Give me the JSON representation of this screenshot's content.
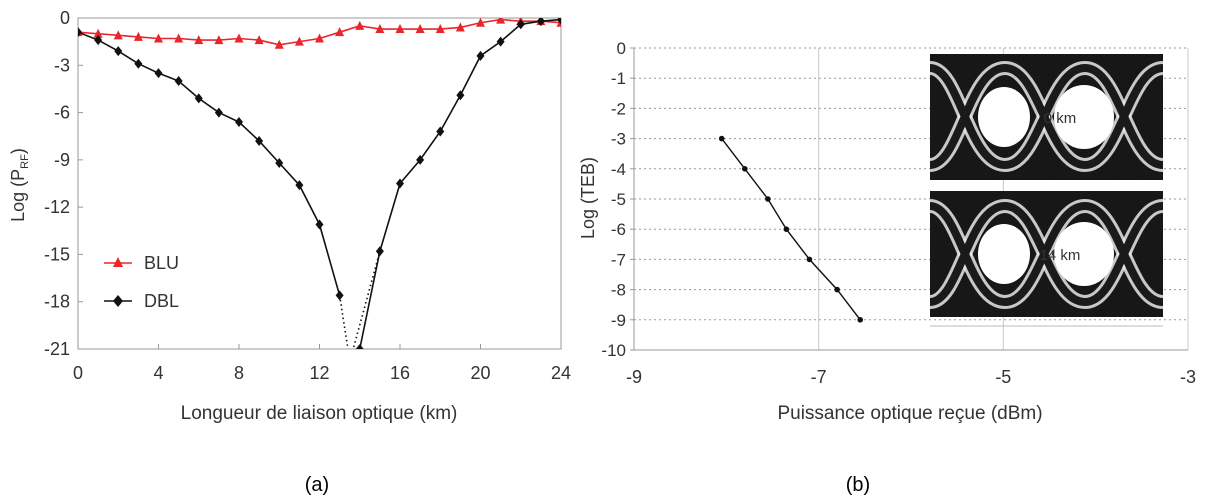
{
  "chart_data": [
    {
      "panel_label": "(a)",
      "type": "line",
      "xlabel": "Longueur de liaison optique (km)",
      "ylabel_main": "Log (P",
      "ylabel_sub": "RF",
      "ylabel_tail": ")",
      "xlim": [
        0,
        24
      ],
      "ylim": [
        -21,
        0
      ],
      "xticks": [
        0,
        4,
        8,
        12,
        16,
        20,
        24
      ],
      "yticks": [
        0,
        -3,
        -6,
        -9,
        -12,
        -15,
        -18,
        -21
      ],
      "grid": false,
      "legend_position": "bottom-left",
      "series": [
        {
          "name": "BLU",
          "color": "#e8262c",
          "marker": "triangle",
          "x": [
            0,
            1,
            2,
            3,
            4,
            5,
            6,
            7,
            8,
            9,
            10,
            11,
            12,
            13,
            14,
            15,
            16,
            17,
            18,
            19,
            20,
            21,
            22,
            23,
            24
          ],
          "y": [
            -0.9,
            -1.0,
            -1.1,
            -1.2,
            -1.3,
            -1.3,
            -1.4,
            -1.4,
            -1.3,
            -1.4,
            -1.7,
            -1.5,
            -1.3,
            -0.9,
            -0.5,
            -0.7,
            -0.7,
            -0.7,
            -0.7,
            -0.6,
            -0.3,
            -0.1,
            -0.2,
            -0.2,
            -0.3
          ]
        },
        {
          "name": "DBL",
          "color": "#111111",
          "marker": "diamond",
          "x": [
            0,
            1,
            2,
            3,
            4,
            5,
            6,
            7,
            8,
            9,
            10,
            11,
            12,
            13,
            14,
            15,
            16,
            17,
            18,
            19,
            20,
            21,
            22,
            23,
            24
          ],
          "y": [
            -0.9,
            -1.4,
            -2.1,
            -2.9,
            -3.5,
            -4.0,
            -5.1,
            -6.0,
            -6.6,
            -7.8,
            -9.2,
            -10.6,
            -13.1,
            -17.6,
            -21.0,
            -14.8,
            -10.5,
            -9.0,
            -7.2,
            -4.9,
            -2.4,
            -1.5,
            -0.4,
            -0.2,
            -0.1
          ]
        }
      ]
    },
    {
      "panel_label": "(b)",
      "type": "line",
      "xlabel": "Puissance optique reçue (dBm)",
      "ylabel": "Log (TEB)",
      "xlim": [
        -9,
        -3
      ],
      "ylim": [
        -10,
        0
      ],
      "xticks": [
        -9,
        -7,
        -5,
        -3
      ],
      "yticks": [
        0,
        -1,
        -2,
        -3,
        -4,
        -5,
        -6,
        -7,
        -8,
        -9,
        -10
      ],
      "grid": true,
      "series": [
        {
          "color": "#111111",
          "marker": "circle",
          "x": [
            -8.05,
            -7.8,
            -7.55,
            -7.35,
            -7.1,
            -6.8,
            -6.55
          ],
          "y": [
            -3,
            -4,
            -5,
            -6,
            -7,
            -8,
            -9
          ]
        }
      ],
      "insets": [
        {
          "label": "0 km"
        },
        {
          "label": "14 km"
        }
      ]
    }
  ]
}
